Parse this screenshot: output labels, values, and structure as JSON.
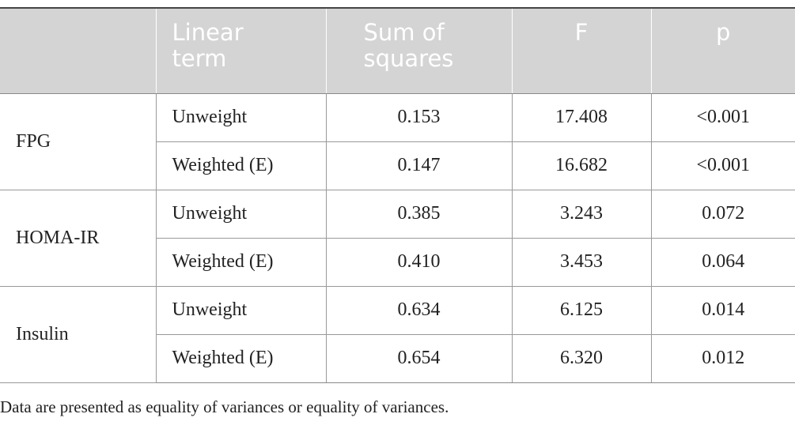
{
  "table": {
    "header": [
      "Linear term",
      "Sum of squares",
      "F",
      "p"
    ],
    "groups": [
      {
        "label": "FPG",
        "rows": [
          [
            "Unweight",
            "0.153",
            "17.408",
            "<0.001"
          ],
          [
            "Weighted (E)",
            "0.147",
            "16.682",
            "<0.001"
          ]
        ]
      },
      {
        "label": "HOMA-IR",
        "rows": [
          [
            "Unweight",
            "0.385",
            "3.243",
            "0.072"
          ],
          [
            "Weighted (E)",
            "0.410",
            "3.453",
            "0.064"
          ]
        ]
      },
      {
        "label": "Insulin",
        "rows": [
          [
            "Unweight",
            "0.634",
            "6.125",
            "0.014"
          ],
          [
            "Weighted (E)",
            "0.654",
            "6.320",
            "0.012"
          ]
        ]
      }
    ]
  },
  "footnote": "Data are presented as equality of variances or equality of variances."
}
